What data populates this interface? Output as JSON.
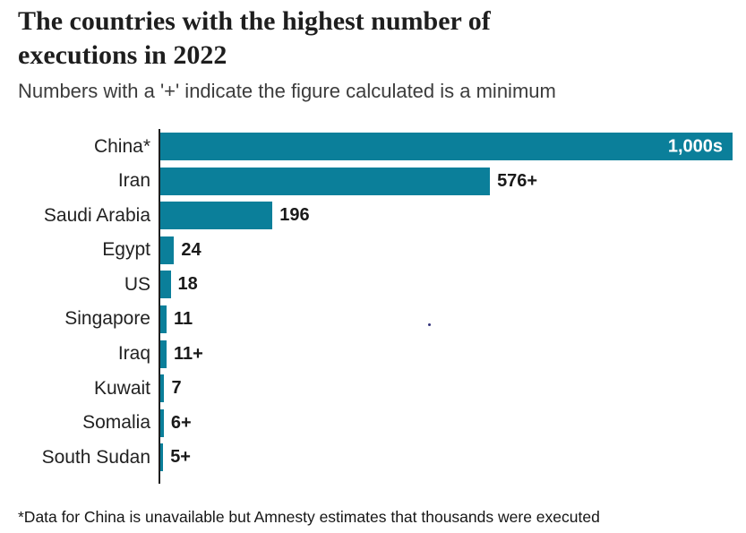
{
  "header": {
    "title_lines": [
      "The countries with the highest number of",
      "executions in 2022"
    ],
    "subtitle": "Numbers with a '+' indicate the figure calculated is a minimum"
  },
  "chart_data": {
    "type": "bar",
    "orientation": "horizontal",
    "title": "The countries with the highest number of executions in 2022",
    "subtitle": "Numbers with a '+' indicate the figure calculated is a minimum",
    "categories": [
      "China*",
      "Iran",
      "Saudi Arabia",
      "Egypt",
      "US",
      "Singapore",
      "Iraq",
      "Kuwait",
      "Somalia",
      "South Sudan"
    ],
    "value_labels": [
      "1,000s",
      "576+",
      "196",
      "24",
      "18",
      "11",
      "11+",
      "7",
      "6+",
      "5+"
    ],
    "plot_values": [
      1000,
      576,
      196,
      24,
      18,
      11,
      11,
      7,
      6,
      5
    ],
    "xlim": [
      0,
      1000
    ],
    "grid": false,
    "legend": false,
    "bar_color": "#0b7f9a",
    "axis_color": "#1e1e1e",
    "label_inside_index": 0,
    "note": "China bar drawn full-width; value shown as 1,000s"
  },
  "footnote": "*Data for China is unavailable but Amnesty estimates that thousands were executed"
}
